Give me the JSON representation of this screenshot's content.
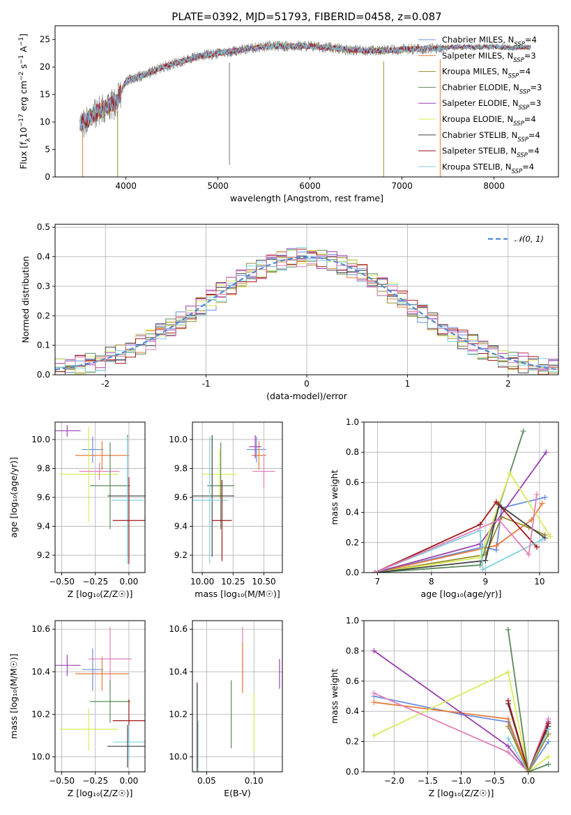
{
  "figure": {
    "title": "PLATE=0392, MJD=51793, FIBERID=0458, z=0.087"
  },
  "colors": {
    "Chabrier MILES": "#6a8ee0",
    "Salpeter MILES": "#e87b3a",
    "Kroupa MILES": "#9a8a2a",
    "Chabrier ELODIE": "#5a8a5a",
    "Salpeter ELODIE": "#9a3fb0",
    "Kroupa ELODIE": "#d8ec5a",
    "Chabrier STELIB": "#444444",
    "Salpeter STELIB": "#a01515",
    "Kroupa STELIB": "#7ed0e0",
    "pink": "#e27fb8",
    "gaussian": "#4f8ad6"
  },
  "chart_data": [
    {
      "id": "spectrum",
      "type": "line",
      "title": "PLATE=0392, MJD=51793, FIBERID=0458, z=0.087",
      "xlabel": "wavelength [Angstrom, rest frame]",
      "ylabel_parts": [
        "Flux [f",
        "λ",
        "10",
        "−17",
        " erg cm",
        "−2",
        " s",
        "−1",
        " A",
        "−1",
        "]"
      ],
      "xlim": [
        3230,
        8700
      ],
      "ylim": [
        0,
        27.5
      ],
      "xticks": [
        4000,
        5000,
        6000,
        7000,
        8000
      ],
      "yticks": [
        0,
        5,
        10,
        15,
        20,
        25
      ],
      "legend_position": "upper-right",
      "legend": [
        {
          "label": "Chabrier MILES, N",
          "sub": "SSP",
          "tail": "=4",
          "color": "#6a8ee0"
        },
        {
          "label": "Salpeter MILES, N",
          "sub": "SSP",
          "tail": "=3",
          "color": "#e87b3a"
        },
        {
          "label": "Kroupa MILES, N",
          "sub": "SSP",
          "tail": "=4",
          "color": "#9a8a2a"
        },
        {
          "label": "Chabrier ELODIE, N",
          "sub": "SSP",
          "tail": "=3",
          "color": "#5a8a5a"
        },
        {
          "label": "Salpeter ELODIE, N",
          "sub": "SSP",
          "tail": "=3",
          "color": "#9a3fb0"
        },
        {
          "label": "Kroupa ELODIE, N",
          "sub": "SSP",
          "tail": "=4",
          "color": "#d8ec5a"
        },
        {
          "label": "Chabrier STELIB, N",
          "sub": "SSP",
          "tail": "=4",
          "color": "#444444"
        },
        {
          "label": "Salpeter STELIB, N",
          "sub": "SSP",
          "tail": "=4",
          "color": "#a01515"
        },
        {
          "label": "Kroupa STELIB, N",
          "sub": "SSP",
          "tail": "=4",
          "color": "#7ed0e0"
        }
      ],
      "continuum": {
        "x": [
          3500,
          3700,
          3900,
          4000,
          4200,
          4400,
          4600,
          4800,
          5000,
          5200,
          5400,
          5600,
          5800,
          6000,
          6200,
          6400,
          6600,
          6800,
          7000,
          7200,
          7400,
          7600,
          7800,
          8000,
          8200,
          8400
        ],
        "y": [
          9.5,
          12.0,
          13.5,
          17.5,
          18.5,
          20.0,
          21.0,
          22.0,
          22.5,
          23.0,
          23.5,
          23.8,
          23.8,
          23.8,
          23.5,
          23.2,
          23.0,
          23.0,
          23.2,
          23.3,
          23.4,
          23.7,
          23.6,
          23.7,
          23.5,
          23.6
        ]
      },
      "dropouts": [
        {
          "x": 3530,
          "y": 0,
          "color": "#e87b3a"
        },
        {
          "x": 3910,
          "y": 0,
          "color": "#9a8a2a"
        },
        {
          "x": 5125,
          "y": 2.2,
          "color": "#777777"
        },
        {
          "x": 6800,
          "y": 0,
          "color": "#9a8a2a"
        },
        {
          "x": 7415,
          "y": 0,
          "color": "#e87b3a"
        }
      ]
    },
    {
      "id": "residuals",
      "type": "bar",
      "xlabel": "(data-model)/error",
      "ylabel": "Normed distribution",
      "xlim": [
        -2.5,
        2.5
      ],
      "ylim": [
        0,
        0.51
      ],
      "xticks": [
        -2,
        -1,
        0,
        1,
        2
      ],
      "yticks": [
        0.0,
        0.1,
        0.2,
        0.3,
        0.4,
        0.5
      ],
      "legend_position": "upper-right",
      "gaussian_label": "𝒩(0, 1)",
      "bin_width": 0.1
    },
    {
      "id": "age-vs-Z",
      "type": "scatter",
      "xlabel": "Z [log₁₀(Z/Z☉)]",
      "ylabel": "age  [log₁₀(age/yr)]",
      "xlim": [
        -0.55,
        0.12
      ],
      "ylim": [
        9.08,
        10.12
      ],
      "xticks": [
        -0.5,
        -0.25,
        0.0
      ],
      "xtick_labels": [
        "−0.50",
        "−0.25",
        "0.00"
      ],
      "yticks": [
        9.2,
        9.4,
        9.6,
        9.8,
        10.0
      ],
      "points": [
        {
          "x": -0.27,
          "xerr": 0.08,
          "y": 9.93,
          "yerr": 0.09,
          "color": "#6a8ee0"
        },
        {
          "x": -0.2,
          "xerr": 0.2,
          "y": 9.89,
          "yerr": 0.1,
          "color": "#e87b3a"
        },
        {
          "x": -0.46,
          "xerr": 0.1,
          "y": 10.06,
          "yerr": 0.04,
          "color": "#9a3fb0"
        },
        {
          "x": -0.3,
          "xerr": 0.22,
          "y": 9.76,
          "yerr": 0.33,
          "color": "#d8ec5a"
        },
        {
          "x": -0.22,
          "xerr": 0.15,
          "y": 9.78,
          "yerr": 0.06,
          "color": "#e27fb8"
        },
        {
          "x": -0.14,
          "xerr": 0.15,
          "y": 9.68,
          "yerr": 0.3,
          "color": "#5a8a5a"
        },
        {
          "x": -0.01,
          "xerr": 0.15,
          "y": 9.61,
          "yerr": 0.42,
          "color": "#444444"
        },
        {
          "x": -0.01,
          "xerr": 0.12,
          "y": 9.58,
          "yerr": 0.44,
          "color": "#7ed0e0"
        },
        {
          "x": 0.0,
          "xerr": 0.12,
          "y": 9.44,
          "yerr": 0.3,
          "color": "#a01515"
        }
      ]
    },
    {
      "id": "age-vs-mass",
      "type": "scatter",
      "xlabel": "mass [log₁₀(M/M☉)]",
      "xlim": [
        9.92,
        10.65
      ],
      "ylim": [
        9.08,
        10.12
      ],
      "xticks": [
        10.0,
        10.25,
        10.5
      ],
      "xtick_labels": [
        "10.00",
        "10.25",
        "10.50"
      ],
      "yticks": [
        9.2,
        9.4,
        9.6,
        9.8,
        10.0
      ],
      "points": [
        {
          "x": 10.44,
          "xerr": 0.08,
          "y": 9.93,
          "yerr": 0.09,
          "color": "#6a8ee0"
        },
        {
          "x": 10.46,
          "xerr": 0.06,
          "y": 9.89,
          "yerr": 0.1,
          "color": "#e87b3a"
        },
        {
          "x": 10.43,
          "xerr": 0.05,
          "y": 9.95,
          "yerr": 0.08,
          "color": "#9a3fb0"
        },
        {
          "x": 10.5,
          "xerr": 0.09,
          "y": 9.78,
          "yerr": 0.12,
          "color": "#e27fb8"
        },
        {
          "x": 10.14,
          "xerr": 0.14,
          "y": 9.76,
          "yerr": 0.17,
          "color": "#d8ec5a"
        },
        {
          "x": 10.15,
          "xerr": 0.11,
          "y": 9.68,
          "yerr": 0.3,
          "color": "#5a8a5a"
        },
        {
          "x": 10.08,
          "xerr": 0.18,
          "y": 9.61,
          "yerr": 0.42,
          "color": "#444444"
        },
        {
          "x": 10.06,
          "xerr": 0.15,
          "y": 9.58,
          "yerr": 0.44,
          "color": "#7ed0e0"
        },
        {
          "x": 10.16,
          "xerr": 0.08,
          "y": 9.44,
          "yerr": 0.28,
          "color": "#a01515"
        }
      ]
    },
    {
      "id": "weight-vs-age",
      "type": "line",
      "xlabel": "age  [log₁₀(age/yr)]",
      "ylabel": "mass weight",
      "xlim": [
        6.75,
        10.35
      ],
      "ylim": [
        0,
        1.0
      ],
      "xticks": [
        7,
        8,
        9,
        10
      ],
      "yticks": [
        0.0,
        0.2,
        0.4,
        0.6,
        0.8,
        1.0
      ],
      "series": [
        {
          "color": "#6a8ee0",
          "x": [
            6.95,
            8.95,
            9.2,
            9.3,
            10.1
          ],
          "y": [
            0.0,
            0.17,
            0.15,
            0.43,
            0.5
          ]
        },
        {
          "color": "#e87b3a",
          "x": [
            6.95,
            9.2,
            9.85,
            10.05
          ],
          "y": [
            0.0,
            0.18,
            0.35,
            0.46
          ]
        },
        {
          "color": "#9a8a2a",
          "x": [
            6.95,
            9.0,
            9.3,
            9.8,
            10.1
          ],
          "y": [
            0.0,
            0.12,
            0.37,
            0.3,
            0.25
          ]
        },
        {
          "color": "#5a8a5a",
          "x": [
            6.95,
            8.9,
            9.7
          ],
          "y": [
            0.0,
            0.05,
            0.94
          ]
        },
        {
          "color": "#9a3fb0",
          "x": [
            6.95,
            8.9,
            10.12
          ],
          "y": [
            0.0,
            0.19,
            0.8
          ]
        },
        {
          "color": "#d8ec5a",
          "x": [
            6.95,
            8.9,
            9.45,
            10.2
          ],
          "y": [
            0.0,
            0.1,
            0.66,
            0.24
          ]
        },
        {
          "color": "#444444",
          "x": [
            6.95,
            9.0,
            9.25,
            10.1
          ],
          "y": [
            0.0,
            0.08,
            0.45,
            0.23
          ]
        },
        {
          "color": "#a01515",
          "x": [
            6.95,
            8.9,
            9.2,
            9.95
          ],
          "y": [
            0.0,
            0.32,
            0.47,
            0.17
          ]
        },
        {
          "color": "#7ed0e0",
          "x": [
            6.95,
            8.9,
            8.95,
            10.05
          ],
          "y": [
            0.0,
            0.28,
            0.02,
            0.22
          ]
        },
        {
          "color": "#e27fb8",
          "x": [
            6.95,
            9.25,
            9.8,
            9.95
          ],
          "y": [
            0.0,
            0.35,
            0.12,
            0.52
          ]
        }
      ]
    },
    {
      "id": "mass-vs-Z",
      "type": "scatter",
      "xlabel": "Z [log₁₀(Z/Z☉)]",
      "ylabel": "mass [log₁₀(M/M☉)]",
      "xlim": [
        -0.55,
        0.12
      ],
      "ylim": [
        9.93,
        10.64
      ],
      "xticks": [
        -0.5,
        -0.25,
        0.0
      ],
      "xtick_labels": [
        "−0.50",
        "−0.25",
        "0.00"
      ],
      "yticks": [
        10.0,
        10.2,
        10.4,
        10.6
      ],
      "points": [
        {
          "x": -0.27,
          "xerr": 0.08,
          "y": 10.41,
          "yerr": 0.1,
          "color": "#6a8ee0"
        },
        {
          "x": -0.2,
          "xerr": 0.2,
          "y": 10.39,
          "yerr": 0.08,
          "color": "#e87b3a"
        },
        {
          "x": -0.46,
          "xerr": 0.1,
          "y": 10.43,
          "yerr": 0.05,
          "color": "#9a3fb0"
        },
        {
          "x": -0.14,
          "xerr": 0.16,
          "y": 10.46,
          "yerr": 0.15,
          "color": "#e27fb8"
        },
        {
          "x": -0.3,
          "xerr": 0.22,
          "y": 10.13,
          "yerr": 0.1,
          "color": "#d8ec5a"
        },
        {
          "x": -0.14,
          "xerr": 0.15,
          "y": 10.26,
          "yerr": 0.1,
          "color": "#5a8a5a"
        },
        {
          "x": 0.0,
          "xerr": 0.12,
          "y": 10.17,
          "yerr": 0.1,
          "color": "#a01515"
        },
        {
          "x": 0.0,
          "xerr": 0.12,
          "y": 10.07,
          "yerr": 0.08,
          "color": "#7ed0e0"
        },
        {
          "x": -0.01,
          "xerr": 0.15,
          "y": 10.05,
          "yerr": 0.1,
          "color": "#444444"
        }
      ]
    },
    {
      "id": "mass-vs-ebv",
      "type": "scatter",
      "xlabel": "E(B-V)",
      "xlim": [
        0.035,
        0.13
      ],
      "ylim": [
        9.93,
        10.64
      ],
      "xticks": [
        0.05,
        0.1
      ],
      "xtick_labels": [
        "0.05",
        "0.10"
      ],
      "yticks": [
        10.0,
        10.2,
        10.4,
        10.6
      ],
      "points": [
        {
          "x": 0.04,
          "y": 10.15,
          "yerr": 0.2,
          "color": "#a01515"
        },
        {
          "x": 0.04,
          "y": 10.1,
          "yerr": 0.24,
          "color": "#444444"
        },
        {
          "x": 0.041,
          "y": 10.05,
          "yerr": 0.12,
          "color": "#7ed0e0"
        },
        {
          "x": 0.076,
          "y": 10.2,
          "yerr": 0.16,
          "color": "#5a8a5a"
        },
        {
          "x": 0.088,
          "y": 10.46,
          "yerr": 0.15,
          "color": "#e27fb8"
        },
        {
          "x": 0.088,
          "y": 10.42,
          "yerr": 0.12,
          "color": "#e87b3a"
        },
        {
          "x": 0.1,
          "y": 10.16,
          "yerr": 0.14,
          "color": "#d8ec5a"
        },
        {
          "x": 0.127,
          "y": 10.39,
          "yerr": 0.07,
          "color": "#9a3fb0"
        }
      ]
    },
    {
      "id": "weight-vs-Z",
      "type": "line",
      "xlabel": "Z [log₁₀(Z/Z☉)]",
      "ylabel": "mass weight",
      "xlim": [
        -2.45,
        0.45
      ],
      "ylim": [
        0,
        1.0
      ],
      "xticks": [
        -2.0,
        -1.5,
        -1.0,
        -0.5,
        0.0
      ],
      "xtick_labels": [
        "−2.0",
        "−1.5",
        "−1.0",
        "−0.5",
        "0.0"
      ],
      "yticks": [
        0.0,
        0.2,
        0.4,
        0.6,
        0.8,
        1.0
      ],
      "series": [
        {
          "color": "#6a8ee0",
          "x": [
            -2.3,
            -1.0,
            -0.3,
            0.0,
            0.3
          ],
          "y": [
            0.5,
            0.38,
            0.33,
            0.0,
            0.2
          ]
        },
        {
          "color": "#e87b3a",
          "x": [
            -2.3,
            -0.3,
            0.0,
            0.3
          ],
          "y": [
            0.46,
            0.35,
            0.0,
            0.33
          ]
        },
        {
          "color": "#9a3fb0",
          "x": [
            -2.3,
            -0.3,
            0.0,
            0.3
          ],
          "y": [
            0.8,
            0.17,
            0.0,
            0.33
          ]
        },
        {
          "color": "#d8ec5a",
          "x": [
            -2.3,
            -0.3,
            0.0,
            0.3
          ],
          "y": [
            0.24,
            0.66,
            0.0,
            0.1
          ]
        },
        {
          "color": "#e27fb8",
          "x": [
            -2.3,
            -0.3,
            0.0,
            0.3
          ],
          "y": [
            0.52,
            0.13,
            0.0,
            0.35
          ]
        },
        {
          "color": "#5a8a5a",
          "x": [
            -0.3,
            0.0,
            0.3
          ],
          "y": [
            0.94,
            0.0,
            0.05
          ]
        },
        {
          "color": "#444444",
          "x": [
            -0.3,
            0.0,
            0.3
          ],
          "y": [
            0.45,
            0.0,
            0.3
          ]
        },
        {
          "color": "#a01515",
          "x": [
            -0.3,
            0.0,
            0.3
          ],
          "y": [
            0.47,
            0.0,
            0.32
          ]
        },
        {
          "color": "#7ed0e0",
          "x": [
            -0.3,
            0.0,
            0.3
          ],
          "y": [
            0.22,
            0.0,
            0.28
          ]
        },
        {
          "color": "#9a8a2a",
          "x": [
            -0.3,
            0.0,
            0.3
          ],
          "y": [
            0.3,
            0.0,
            0.25
          ]
        }
      ]
    }
  ]
}
